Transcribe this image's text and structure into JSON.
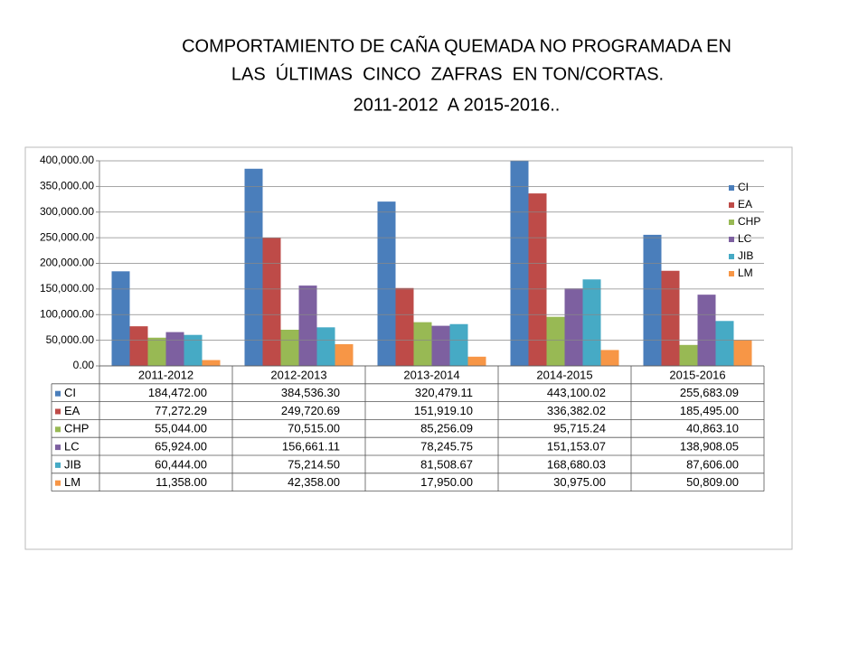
{
  "chart_data": {
    "type": "bar",
    "title": [
      "COMPORTAMIENTO DE CAÑA QUEMADA NO PROGRAMADA EN",
      "LAS  ÚLTIMAS  CINCO  ZAFRAS  EN TON/CORTAS.",
      "2011-2012  A 2015-2016.."
    ],
    "categories": [
      "2011-2012",
      "2012-2013",
      "2013-2014",
      "2014-2015",
      "2015-2016"
    ],
    "series": [
      {
        "name": "CI",
        "color": "#4a7ebb",
        "values": [
          184472.0,
          384536.3,
          320479.11,
          443100.02,
          255683.09
        ],
        "value_labels": [
          "184,472.00",
          "384,536.30",
          "320,479.11",
          "443,100.02",
          "255,683.09"
        ]
      },
      {
        "name": "EA",
        "color": "#be4b48",
        "values": [
          77272.29,
          249720.69,
          151919.1,
          336382.02,
          185495.0
        ],
        "value_labels": [
          "77,272.29",
          "249,720.69",
          "151,919.10",
          "336,382.02",
          "185,495.00"
        ]
      },
      {
        "name": "CHP",
        "color": "#98b954",
        "values": [
          55044.0,
          70515.0,
          85256.09,
          95715.24,
          40863.1
        ],
        "value_labels": [
          "55,044.00",
          "70,515.00",
          "85,256.09",
          "95,715.24",
          "40,863.10"
        ]
      },
      {
        "name": "LC",
        "color": "#7d60a0",
        "values": [
          65924.0,
          156661.11,
          78245.75,
          151153.07,
          138908.05
        ],
        "value_labels": [
          "65,924.00",
          "156,661.11",
          "78,245.75",
          "151,153.07",
          "138,908.05"
        ]
      },
      {
        "name": "JIB",
        "color": "#46aac5",
        "values": [
          60444.0,
          75214.5,
          81508.67,
          168680.03,
          87606.0
        ],
        "value_labels": [
          "60,444.00",
          "75,214.50",
          "81,508.67",
          "168,680.03",
          "87,606.00"
        ]
      },
      {
        "name": "LM",
        "color": "#f79646",
        "values": [
          11358.0,
          42358.0,
          17950.0,
          30975.0,
          50809.0
        ],
        "value_labels": [
          "11,358.00",
          "42,358.00",
          "17,950.00",
          "30,975.00",
          "50,809.00"
        ]
      }
    ],
    "ylim": [
      0,
      400000
    ],
    "yticks": [
      {
        "value": 0,
        "label": "0.00"
      },
      {
        "value": 50000,
        "label": "50,000.00"
      },
      {
        "value": 100000,
        "label": "100,000.00"
      },
      {
        "value": 150000,
        "label": "150,000.00"
      },
      {
        "value": 200000,
        "label": "200,000.00"
      },
      {
        "value": 250000,
        "label": "250,000.00"
      },
      {
        "value": 300000,
        "label": "300,000.00"
      },
      {
        "value": 350000,
        "label": "350,000.00"
      },
      {
        "value": 400000,
        "label": "400,000.00"
      }
    ],
    "grid": true,
    "legend": "right"
  }
}
